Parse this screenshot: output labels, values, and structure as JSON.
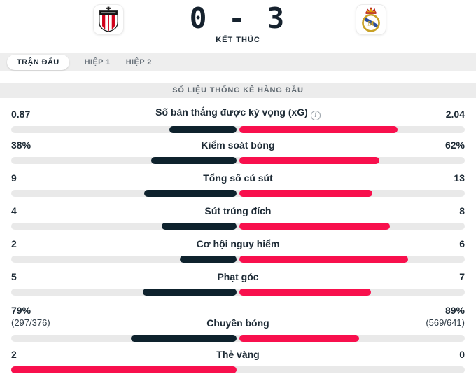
{
  "header": {
    "score": "0 - 3",
    "status": "KẾT THÚC",
    "home_logo": "athletic-club-crest",
    "away_logo": "real-madrid-crest"
  },
  "tabs": [
    {
      "label": "TRẬN ĐẤU",
      "active": true
    },
    {
      "label": "HIỆP 1",
      "active": false
    },
    {
      "label": "HIỆP 2",
      "active": false
    }
  ],
  "section_title": "SỐ LIỆU THỐNG KÊ HÀNG ĐẦU",
  "colors": {
    "accent": "#f8104d",
    "navy": "#0e222d",
    "track": "#e9e9e9"
  },
  "chart_data": {
    "type": "bar",
    "title": "SỐ LIỆU THỐNG KÊ HÀNG ĐẦU",
    "categories": [
      "Số bàn thắng được kỳ vọng (xG)",
      "Kiểm soát bóng",
      "Tổng số cú sút",
      "Sút trúng đích",
      "Cơ hội nguy hiểm",
      "Phạt góc",
      "Chuyền bóng",
      "Thẻ vàng"
    ],
    "series": [
      {
        "name": "home",
        "values": [
          0.87,
          38,
          9,
          4,
          2,
          5,
          79,
          2
        ]
      },
      {
        "name": "away",
        "values": [
          2.04,
          62,
          13,
          8,
          6,
          7,
          89,
          0
        ]
      }
    ]
  },
  "stats": [
    {
      "label": "Số bàn thắng được kỳ vọng (xG)",
      "home": "0.87",
      "away": "2.04",
      "home_pct": 0.299,
      "leader": "away",
      "info": true
    },
    {
      "label": "Kiểm soát bóng",
      "home": "38%",
      "away": "62%",
      "home_pct": 0.38,
      "leader": "away"
    },
    {
      "label": "Tổng số cú sút",
      "home": "9",
      "away": "13",
      "home_pct": 0.409,
      "leader": "away"
    },
    {
      "label": "Sút trúng đích",
      "home": "4",
      "away": "8",
      "home_pct": 0.333,
      "leader": "away"
    },
    {
      "label": "Cơ hội nguy hiểm",
      "home": "2",
      "away": "6",
      "home_pct": 0.25,
      "leader": "away"
    },
    {
      "label": "Phạt góc",
      "home": "5",
      "away": "7",
      "home_pct": 0.417,
      "leader": "away"
    },
    {
      "label": "Chuyền bóng",
      "home": "79%",
      "home_sub": "(297/376)",
      "away": "89%",
      "away_sub": "(569/641)",
      "home_pct": 0.47,
      "leader": "away"
    },
    {
      "label": "Thẻ vàng",
      "home": "2",
      "away": "0",
      "home_pct": 1,
      "leader": "home"
    }
  ]
}
